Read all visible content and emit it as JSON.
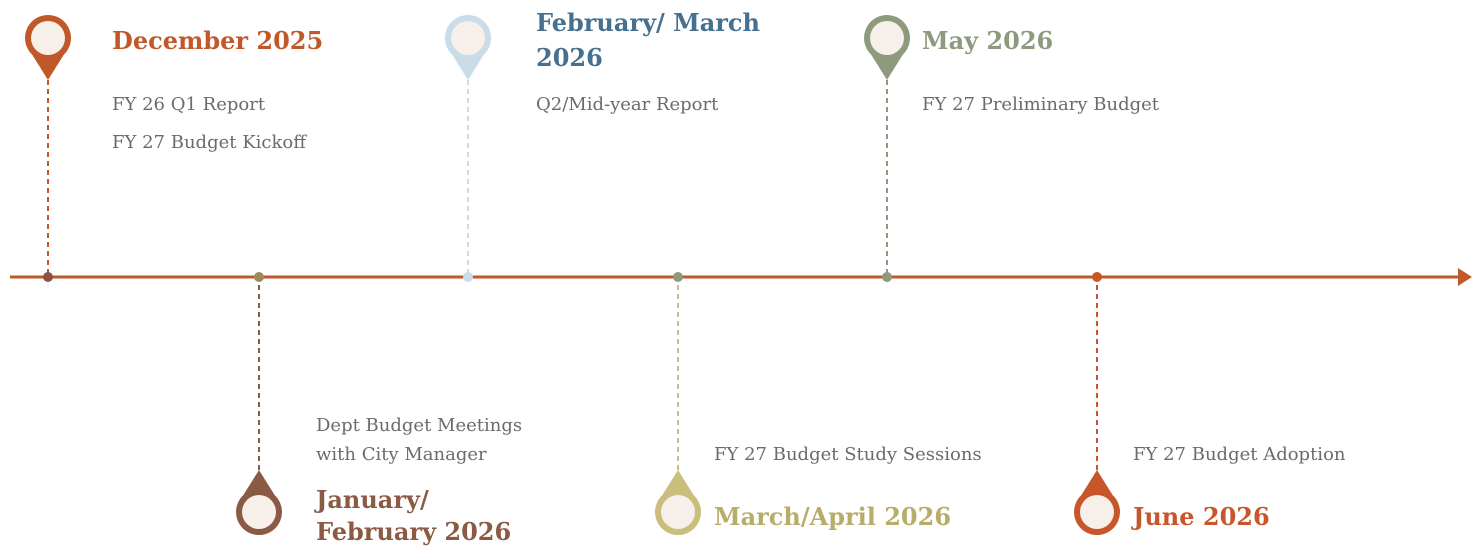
{
  "timeline": {
    "axis_color": "#c0582a",
    "milestones": [
      {
        "side": "top",
        "color": "#c0582a",
        "title_color": "#c0582a",
        "dot_color": "#8b5240",
        "title": [
          "December 2025"
        ],
        "items": [
          "FY 26 Q1 Report",
          "FY 27 Budget Kickoff"
        ]
      },
      {
        "side": "bottom",
        "color": "#8b5a44",
        "title_color": "#8b5a44",
        "dot_color": "#9c8a5e",
        "title": [
          "January/",
          "February 2026"
        ],
        "items": [
          "Dept Budget Meetings",
          "with City Manager"
        ]
      },
      {
        "side": "top",
        "color": "#c9dce7",
        "title_color": "#46708f",
        "dot_color": "#c9dce7",
        "title": [
          "February/ March",
          "2026"
        ],
        "items": [
          "Q2/Mid-year Report"
        ]
      },
      {
        "side": "bottom",
        "color": "#c9be7c",
        "title_color": "#b8ad68",
        "dot_color": "#8e9a7e",
        "title": [
          "March/April 2026"
        ],
        "items": [
          "FY 27 Budget Study Sessions"
        ]
      },
      {
        "side": "top",
        "color": "#8e9a7e",
        "title_color": "#8e9a7e",
        "dot_color": "#8e9a7e",
        "title": [
          "May 2026"
        ],
        "items": [
          "FY 27 Preliminary Budget"
        ]
      },
      {
        "side": "bottom",
        "color": "#c8562a",
        "title_color": "#c8562a",
        "dot_color": "#c8562a",
        "title": [
          "June 2026"
        ],
        "items": [
          "FY 27 Budget Adoption"
        ]
      }
    ]
  }
}
